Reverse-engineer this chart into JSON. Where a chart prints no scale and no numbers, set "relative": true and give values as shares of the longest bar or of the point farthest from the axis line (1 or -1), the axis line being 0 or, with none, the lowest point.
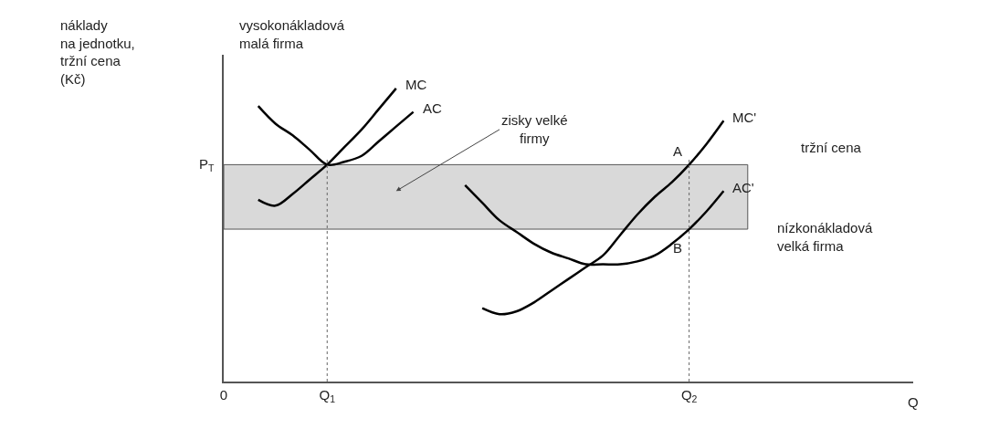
{
  "chart_data": {
    "type": "line",
    "relative": true,
    "xlabel": "Q",
    "categories": [
      "0",
      null,
      null,
      null,
      null,
      null,
      "Q$_{1}$",
      null,
      null,
      null,
      null,
      null,
      null,
      null,
      null,
      null,
      null,
      null,
      null,
      null,
      null,
      null,
      null,
      null,
      null,
      null,
      null,
      "Q$_{2}$",
      null,
      null,
      null,
      null,
      null,
      null,
      null,
      null,
      null,
      null,
      null,
      null,
      null
    ],
    "series": [
      {
        "name": "MC",
        "color": "#000000",
        "values": [
          null,
          null,
          0.62,
          0.6,
          0.64,
          0.69,
          0.74,
          0.8,
          0.86,
          0.93,
          1,
          null,
          null,
          null,
          null,
          null,
          null,
          null,
          null,
          null,
          null,
          null,
          null,
          null,
          null,
          null,
          null,
          null,
          null,
          null,
          null,
          null,
          null,
          null,
          null,
          null,
          null,
          null,
          null,
          null,
          null
        ]
      },
      {
        "name": "AC",
        "color": "#000000",
        "values": [
          null,
          null,
          0.94,
          0.88,
          0.84,
          0.79,
          0.74,
          0.75,
          0.77,
          0.82,
          0.87,
          0.92,
          null,
          null,
          null,
          null,
          null,
          null,
          null,
          null,
          null,
          null,
          null,
          null,
          null,
          null,
          null,
          null,
          null,
          null,
          null,
          null,
          null,
          null,
          null,
          null,
          null,
          null,
          null,
          null,
          null
        ]
      },
      {
        "name": "MC'",
        "color": "#000000",
        "values": [
          null,
          null,
          null,
          null,
          null,
          null,
          null,
          null,
          null,
          null,
          null,
          null,
          null,
          null,
          null,
          0.25,
          0.23,
          0.24,
          0.27,
          0.31,
          0.35,
          0.39,
          0.43,
          0.5,
          0.57,
          0.63,
          0.68,
          0.74,
          0.81,
          0.89,
          null,
          null,
          null,
          null,
          null,
          null,
          null,
          null,
          null,
          null,
          null
        ]
      },
      {
        "name": "AC'",
        "color": "#000000",
        "values": [
          null,
          null,
          null,
          null,
          null,
          null,
          null,
          null,
          null,
          null,
          null,
          null,
          null,
          null,
          0.67,
          0.61,
          0.55,
          0.51,
          0.47,
          0.44,
          0.42,
          0.4,
          0.4,
          0.4,
          0.41,
          0.43,
          0.47,
          0.52,
          0.58,
          0.65,
          null,
          null,
          null,
          null,
          null,
          null,
          null,
          null,
          null,
          null,
          null
        ]
      }
    ],
    "bands": [
      {
        "axis": "y",
        "from": 0.52,
        "to": 0.74,
        "label": "zisky velké\nfirmy",
        "color": "#d9d9d9"
      }
    ],
    "ref_lines": [
      {
        "axis": "x",
        "value": "Q$_{1}$",
        "line_style": "dotted"
      },
      {
        "axis": "x",
        "value": "Q$_{2}$",
        "line_style": "dotted"
      }
    ],
    "annotations": [
      "vysokonákladová\nmalá firma",
      "nízkonákladová\nvelká firma",
      "tržní cena",
      "P$_{T}$",
      "náklady\nna jednotku,\ntržní cena\n(Kč)",
      {
        "text": "A",
        "x": "Q$_{2}$",
        "y": 0.74
      },
      {
        "text": "B",
        "x": "Q$_{2}$",
        "y": 0.52
      }
    ],
    "line_style": "solid"
  }
}
